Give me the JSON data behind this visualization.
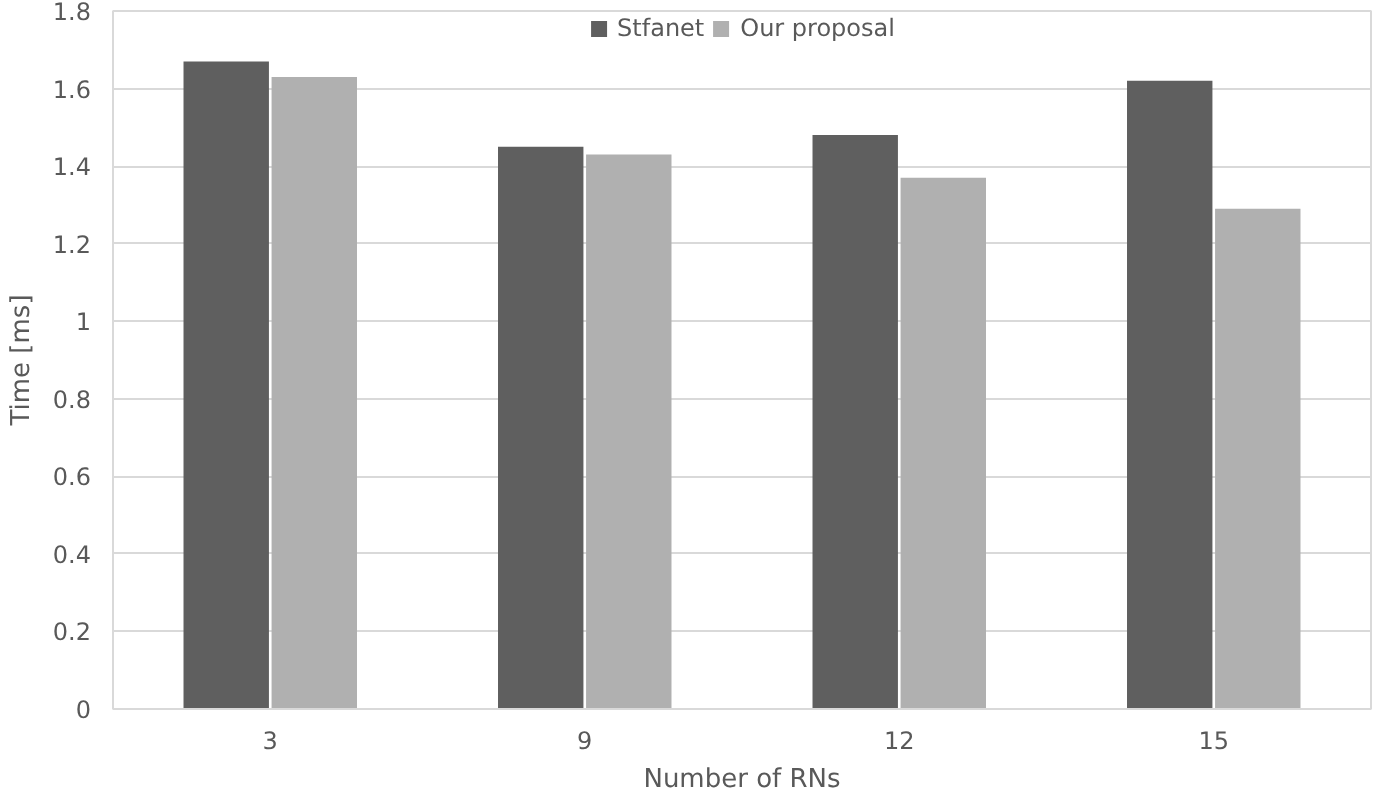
{
  "chart_data": {
    "type": "bar",
    "xlabel": "Number of RNs",
    "ylabel": "Time [ms]",
    "categories": [
      "3",
      "9",
      "12",
      "15"
    ],
    "series": [
      {
        "name": "Stfanet",
        "color": "#5f5f5f",
        "values": [
          1.67,
          1.45,
          1.48,
          1.62
        ]
      },
      {
        "name": "Our proposal",
        "color": "#b0b0b0",
        "values": [
          1.63,
          1.43,
          1.37,
          1.29
        ]
      }
    ],
    "ylim": [
      0,
      1.8
    ],
    "yticks": [
      0,
      {
        "value": 0.2,
        "label": "0.2"
      },
      {
        "value": 0.4,
        "label": "0.4"
      },
      {
        "value": 0.6,
        "label": "0.6"
      },
      {
        "value": 0.8,
        "label": "0.8"
      },
      1,
      {
        "value": 1.2,
        "label": "1.2"
      },
      {
        "value": 1.4,
        "label": "1.4"
      },
      {
        "value": 1.6,
        "label": "1.6"
      },
      {
        "value": 1.8,
        "label": "1.8"
      }
    ],
    "grid": "y",
    "legend": "top"
  }
}
